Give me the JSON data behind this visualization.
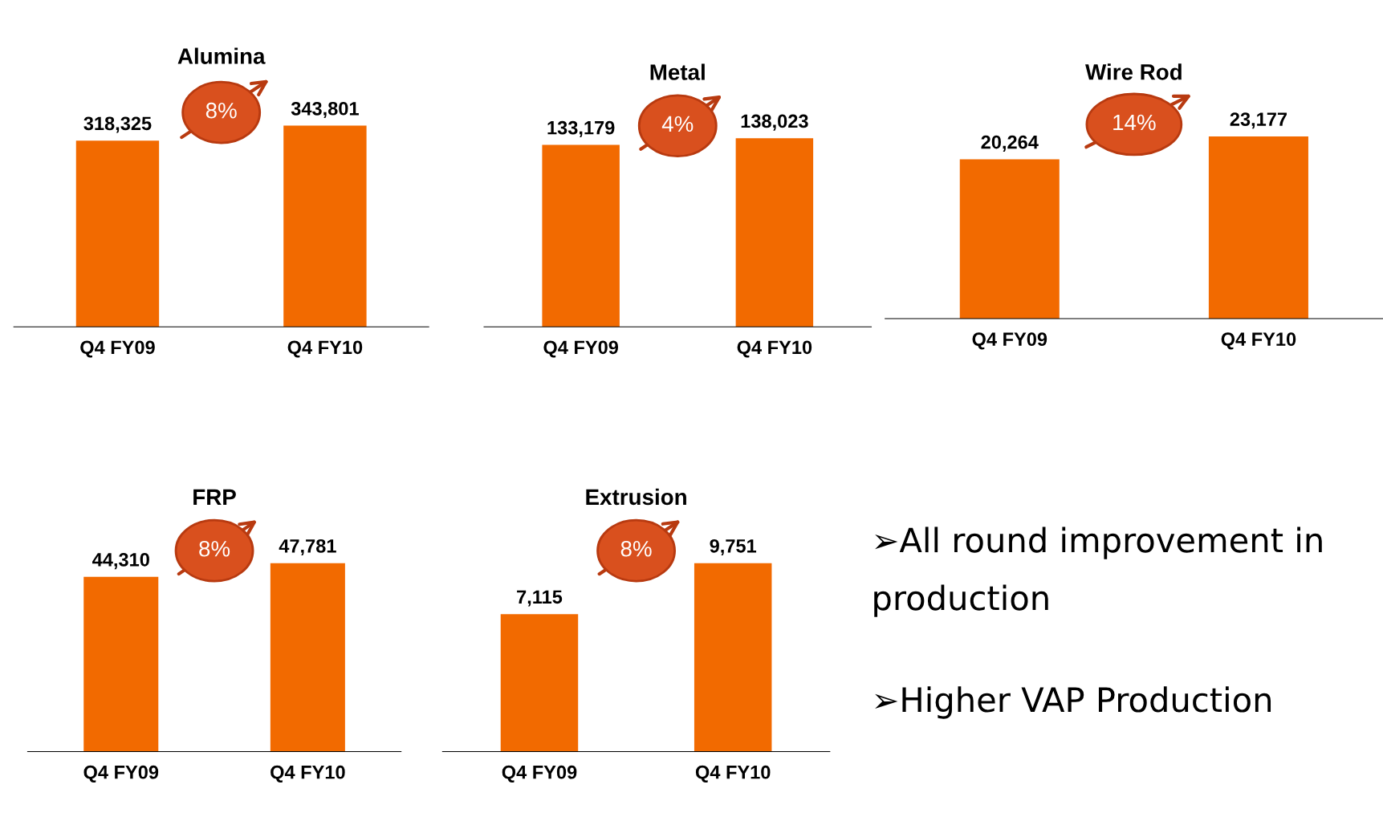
{
  "chart_data": [
    {
      "type": "bar",
      "title": "Alumina",
      "categories": [
        "Q4 FY09",
        "Q4 FY10"
      ],
      "values": [
        318325,
        343801
      ],
      "color": "#f26a00",
      "data_labels": true,
      "value_labels": [
        "318,325",
        "343,801"
      ],
      "annotations": [
        "8%"
      ]
    },
    {
      "type": "bar",
      "title": "Metal",
      "categories": [
        "Q4 FY09",
        "Q4 FY10"
      ],
      "values": [
        133179,
        138023
      ],
      "color": "#f26a00",
      "data_labels": true,
      "value_labels": [
        "133,179",
        "138,023"
      ],
      "annotations": [
        "4%"
      ]
    },
    {
      "type": "bar",
      "title": "Wire Rod",
      "categories": [
        "Q4 FY09",
        "Q4 FY10"
      ],
      "values": [
        20264,
        23177
      ],
      "color": "#f26a00",
      "data_labels": true,
      "value_labels": [
        "20,264",
        "23,177"
      ],
      "annotations": [
        "14%"
      ]
    },
    {
      "type": "bar",
      "title": "FRP",
      "categories": [
        "Q4 FY09",
        "Q4 FY10"
      ],
      "values": [
        44310,
        47781
      ],
      "color": "#f26a00",
      "data_labels": true,
      "value_labels": [
        "44,310",
        "47,781"
      ],
      "annotations": [
        "8%"
      ]
    },
    {
      "type": "bar",
      "title": "Extrusion",
      "categories": [
        "Q4 FY09",
        "Q4 FY10"
      ],
      "values": [
        7115,
        9751
      ],
      "color": "#f26a00",
      "data_labels": true,
      "value_labels": [
        "7,115",
        "9,751"
      ],
      "annotations": [
        "8%"
      ]
    },
    {
      "type": "other",
      "annotations": [
        "➢All round improvement in production",
        "➢Higher VAP Production"
      ]
    }
  ]
}
